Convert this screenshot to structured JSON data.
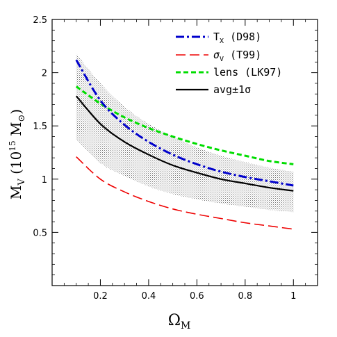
{
  "chart_data": {
    "type": "line",
    "x_axis": {
      "label_main": "Ω",
      "label_sub": "M",
      "range": [
        0.0,
        1.1
      ],
      "ticks": [
        0.2,
        0.4,
        0.6,
        0.8,
        1
      ],
      "tick_labels": [
        "0.2",
        "0.4",
        "0.6",
        "0.8",
        "1"
      ]
    },
    "y_axis": {
      "label_main": "M",
      "label_sub": "V",
      "label_rest": " (10",
      "label_sup": "15",
      "label_unit": " M",
      "label_unit_sub": "⊙",
      "label_close": ")",
      "range": [
        0.0,
        2.5
      ],
      "ticks": [
        0.5,
        1,
        1.5,
        2,
        2.5
      ],
      "tick_labels": [
        "0.5",
        "1",
        "1.5",
        "2",
        "2.5"
      ]
    },
    "x": [
      0.1,
      0.2,
      0.3,
      0.4,
      0.5,
      0.6,
      0.7,
      0.8,
      0.9,
      1.0
    ],
    "series": [
      {
        "name": "T",
        "name_sub": "X",
        "name_suffix": " (D98)",
        "color": "#0000cc",
        "dash": "dashdot",
        "values": [
          2.12,
          1.74,
          1.51,
          1.35,
          1.23,
          1.14,
          1.07,
          1.02,
          0.98,
          0.94
        ]
      },
      {
        "name": "σ",
        "name_sub": "V",
        "name_suffix": " (T99)",
        "color": "#ee0000",
        "dash": "longdash",
        "values": [
          1.21,
          1.0,
          0.88,
          0.79,
          0.72,
          0.67,
          0.63,
          0.59,
          0.56,
          0.53
        ]
      },
      {
        "name": "lens (LK97)",
        "name_sub": "",
        "name_suffix": "",
        "color": "#00dd00",
        "dash": "dash",
        "values": [
          1.87,
          1.71,
          1.58,
          1.48,
          1.4,
          1.33,
          1.27,
          1.22,
          1.17,
          1.14
        ]
      },
      {
        "name": "avg±1σ",
        "name_sub": "",
        "name_suffix": "",
        "color": "#000000",
        "dash": "solid",
        "values": [
          1.78,
          1.52,
          1.35,
          1.23,
          1.13,
          1.06,
          1.0,
          0.96,
          0.92,
          0.89
        ]
      }
    ],
    "band": {
      "upper": [
        2.18,
        1.9,
        1.68,
        1.52,
        1.4,
        1.3,
        1.22,
        1.16,
        1.11,
        1.07
      ],
      "lower": [
        1.37,
        1.15,
        1.03,
        0.93,
        0.86,
        0.81,
        0.77,
        0.74,
        0.71,
        0.69
      ]
    },
    "legend_position": "top-right",
    "grid": false
  }
}
